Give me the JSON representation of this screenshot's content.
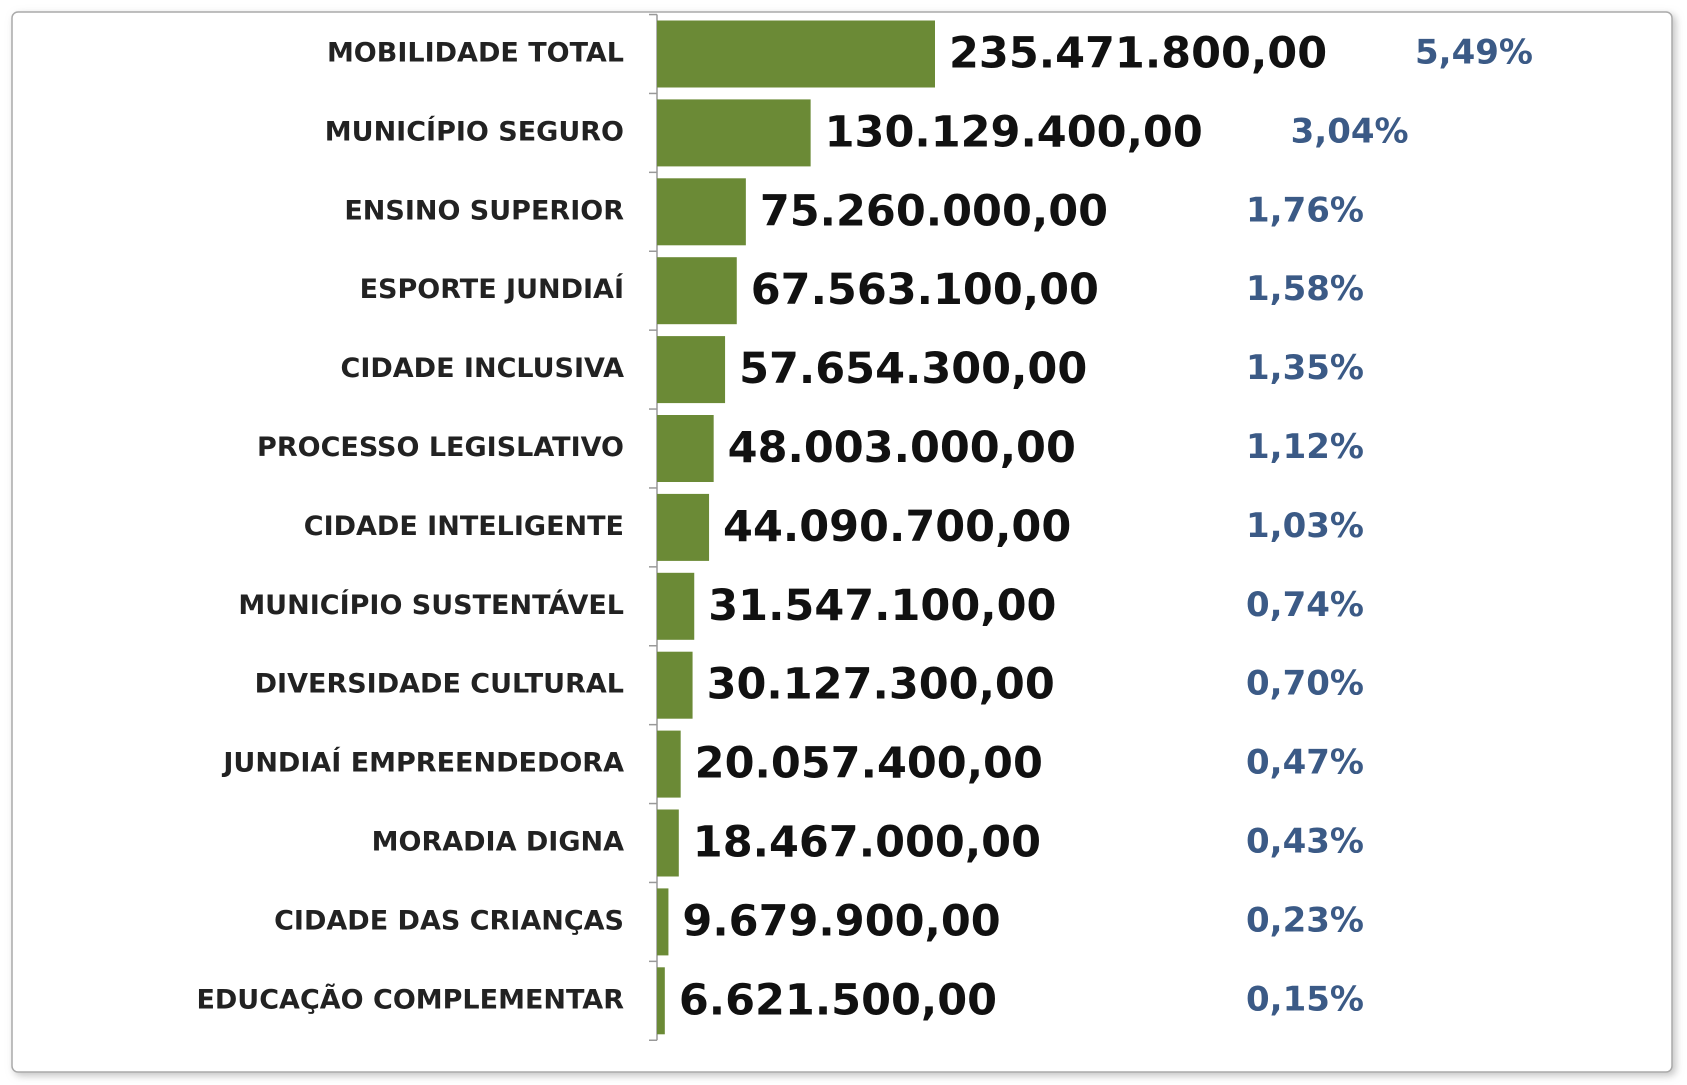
{
  "chart_data": {
    "type": "barh",
    "categories": [
      "MOBILIDADE TOTAL",
      "MUNICÍPIO SEGURO",
      "ENSINO SUPERIOR",
      "ESPORTE JUNDIAÍ",
      "CIDADE INCLUSIVA",
      "PROCESSO LEGISLATIVO",
      "CIDADE INTELIGENTE",
      "MUNICÍPIO SUSTENTÁVEL",
      "DIVERSIDADE CULTURAL",
      "JUNDIAÍ EMPREENDEDORA",
      "MORADIA DIGNA",
      "CIDADE DAS CRIANÇAS",
      "EDUCAÇÃO COMPLEMENTAR"
    ],
    "values": [
      235471800,
      130129400,
      75260000,
      67563100,
      57654300,
      48003000,
      44090700,
      31547100,
      30127300,
      20057400,
      18467000,
      9679900,
      6621500
    ],
    "value_labels": [
      "235.471.800,00",
      "130.129.400,00",
      "75.260.000,00",
      "67.563.100,00",
      "57.654.300,00",
      "48.003.000,00",
      "44.090.700,00",
      "31.547.100,00",
      "30.127.300,00",
      "20.057.400,00",
      "18.467.000,00",
      "9.679.900,00",
      "6.621.500,00"
    ],
    "shares": [
      5.49,
      3.04,
      1.76,
      1.58,
      1.35,
      1.12,
      1.03,
      0.74,
      0.7,
      0.47,
      0.43,
      0.23,
      0.15
    ],
    "share_labels": [
      "5,49%",
      "3,04%",
      "1,76%",
      "1,58%",
      "1,35%",
      "1,12%",
      "1,03%",
      "0,74%",
      "0,70%",
      "0,47%",
      "0,43%",
      "0,23%",
      "0,15%"
    ],
    "color": "#6b8a36"
  }
}
